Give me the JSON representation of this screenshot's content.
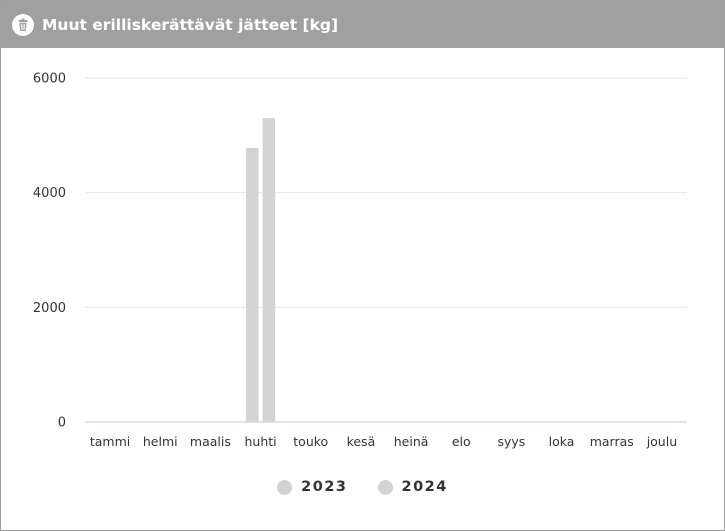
{
  "header": {
    "title": "Muut erilliskerättävät jätteet [kg]",
    "icon": "trash-bin-icon"
  },
  "colors": {
    "header_bg": "#a0a0a0",
    "bar": "#d3d3d3",
    "grid": "#e6e6e6",
    "baseline": "#c8d3e6"
  },
  "chart_data": {
    "type": "bar",
    "title": "Muut erilliskerättävät jätteet [kg]",
    "categories": [
      "tammi",
      "helmi",
      "maalis",
      "huhti",
      "touko",
      "kesä",
      "heinä",
      "elo",
      "syys",
      "loka",
      "marras",
      "joulu"
    ],
    "series": [
      {
        "name": "2023",
        "values": [
          0,
          0,
          0,
          4780,
          0,
          0,
          0,
          0,
          0,
          0,
          0,
          0
        ],
        "color": "#d3d3d3"
      },
      {
        "name": "2024",
        "values": [
          0,
          0,
          0,
          5300,
          0,
          0,
          0,
          0,
          0,
          0,
          0,
          0
        ],
        "color": "#d3d3d3"
      }
    ],
    "yticks": [
      0,
      2000,
      4000,
      6000
    ],
    "ylim": [
      0,
      6000
    ],
    "grid": true,
    "legend_position": "bottom-center"
  }
}
